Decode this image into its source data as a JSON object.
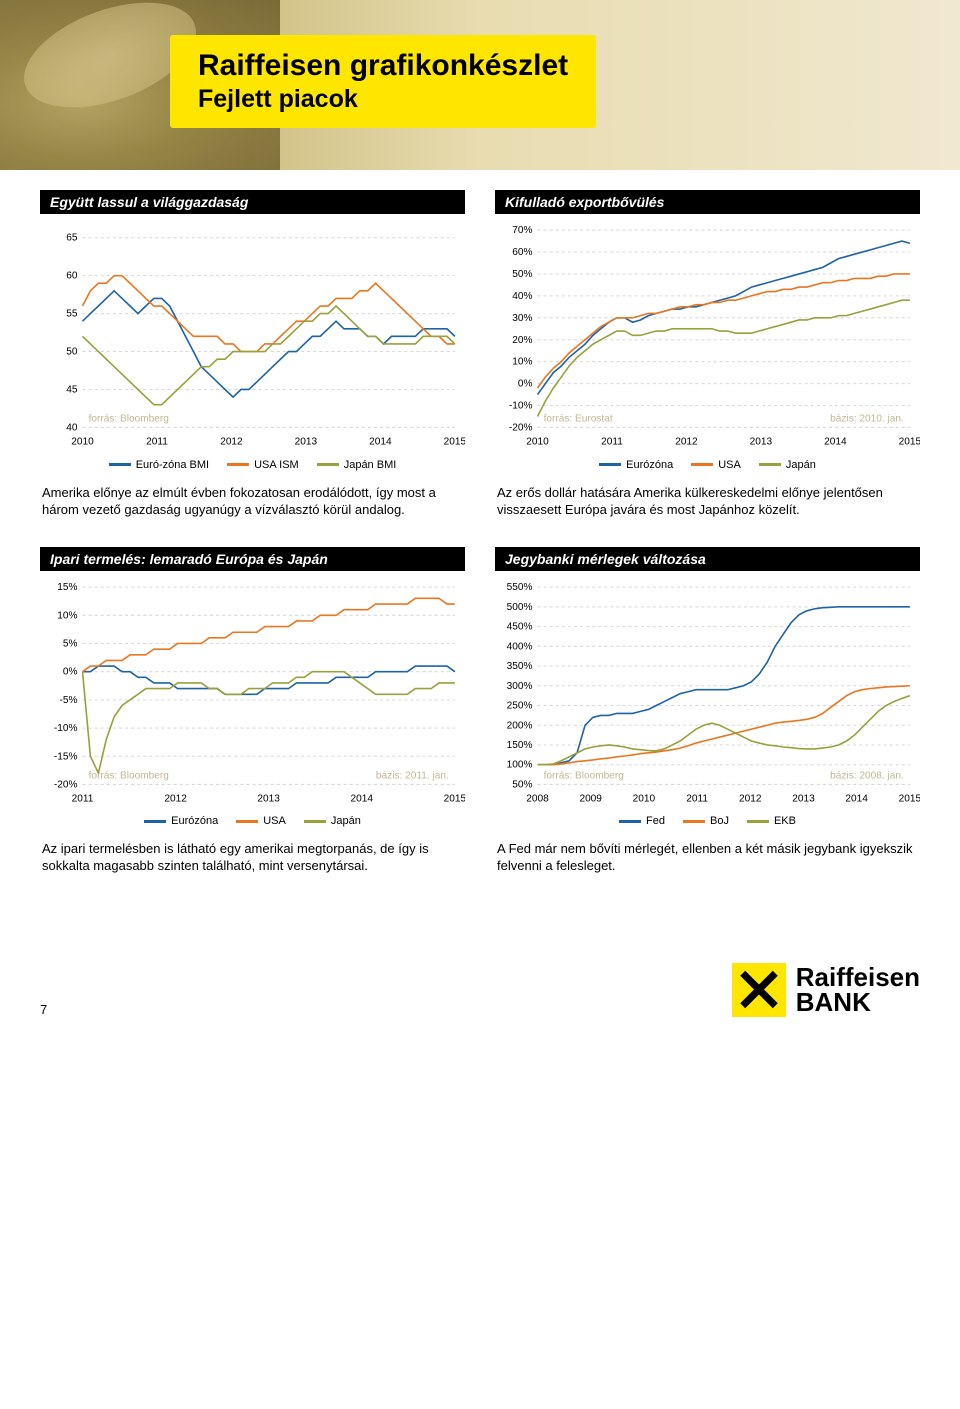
{
  "header": {
    "title": "Raiffeisen grafikonkészlet",
    "subtitle": "Fejlett piacok"
  },
  "colors": {
    "euro": "#1e64a5",
    "usa": "#e87722",
    "japan": "#9aa03c",
    "grid": "#d8d8d8",
    "annot": "#c0b890"
  },
  "chart_a": {
    "title": "Együtt lassul a világgazdaság",
    "type": "line",
    "source": "forrás: Bloomberg",
    "ylim": [
      40,
      66
    ],
    "yticks": [
      40,
      45,
      50,
      55,
      60,
      65
    ],
    "xticks": [
      "2010",
      "2011",
      "2012",
      "2013",
      "2014",
      "2015"
    ],
    "legend": [
      {
        "label": "Euró-zóna BMI",
        "color": "#1e64a5"
      },
      {
        "label": "USA ISM",
        "color": "#e87722"
      },
      {
        "label": "Japán BMI",
        "color": "#9aa03c"
      }
    ],
    "series": {
      "euro": [
        54,
        55,
        56,
        57,
        58,
        57,
        56,
        55,
        56,
        57,
        57,
        56,
        54,
        52,
        50,
        48,
        47,
        46,
        45,
        44,
        45,
        45,
        46,
        47,
        48,
        49,
        50,
        50,
        51,
        52,
        52,
        53,
        54,
        53,
        53,
        53,
        52,
        52,
        51,
        52,
        52,
        52,
        52,
        53,
        53,
        53,
        53,
        52
      ],
      "usa": [
        56,
        58,
        59,
        59,
        60,
        60,
        59,
        58,
        57,
        56,
        56,
        55,
        54,
        53,
        52,
        52,
        52,
        52,
        51,
        51,
        50,
        50,
        50,
        51,
        51,
        52,
        53,
        54,
        54,
        55,
        56,
        56,
        57,
        57,
        57,
        58,
        58,
        59,
        58,
        57,
        56,
        55,
        54,
        53,
        52,
        52,
        51,
        51
      ],
      "japan": [
        52,
        51,
        50,
        49,
        48,
        47,
        46,
        45,
        44,
        43,
        43,
        44,
        45,
        46,
        47,
        48,
        48,
        49,
        49,
        50,
        50,
        50,
        50,
        50,
        51,
        51,
        52,
        53,
        54,
        54,
        55,
        55,
        56,
        55,
        54,
        53,
        52,
        52,
        51,
        51,
        51,
        51,
        51,
        52,
        52,
        52,
        52,
        51
      ]
    },
    "caption": "Amerika előnye az elmúlt évben fokozatosan erodálódott, így most a három vezető gazdaság ugyanúgy a vízválasztó körül andalog."
  },
  "chart_b": {
    "title": "Kifulladó exportbővülés",
    "type": "line",
    "source": "forrás: Eurostat",
    "basis": "bázis: 2010. jan.",
    "ylim": [
      -20,
      70
    ],
    "yticks": [
      -20,
      -10,
      0,
      10,
      20,
      30,
      40,
      50,
      60,
      70
    ],
    "xticks": [
      "2010",
      "2011",
      "2012",
      "2013",
      "2014",
      "2015"
    ],
    "legend": [
      {
        "label": "Eurózóna",
        "color": "#1e64a5"
      },
      {
        "label": "USA",
        "color": "#e87722"
      },
      {
        "label": "Japán",
        "color": "#9aa03c"
      }
    ],
    "series": {
      "euro": [
        -5,
        0,
        5,
        8,
        12,
        15,
        18,
        22,
        25,
        28,
        30,
        30,
        28,
        29,
        31,
        32,
        33,
        34,
        34,
        35,
        35,
        36,
        37,
        38,
        39,
        40,
        42,
        44,
        45,
        46,
        47,
        48,
        49,
        50,
        51,
        52,
        53,
        55,
        57,
        58,
        59,
        60,
        61,
        62,
        63,
        64,
        65,
        64
      ],
      "usa": [
        -2,
        3,
        7,
        10,
        14,
        17,
        20,
        23,
        26,
        28,
        30,
        30,
        30,
        31,
        32,
        32,
        33,
        34,
        35,
        35,
        36,
        36,
        37,
        37,
        38,
        38,
        39,
        40,
        41,
        42,
        42,
        43,
        43,
        44,
        44,
        45,
        46,
        46,
        47,
        47,
        48,
        48,
        48,
        49,
        49,
        50,
        50,
        50
      ],
      "japan": [
        -15,
        -8,
        -2,
        3,
        8,
        12,
        15,
        18,
        20,
        22,
        24,
        24,
        22,
        22,
        23,
        24,
        24,
        25,
        25,
        25,
        25,
        25,
        25,
        24,
        24,
        23,
        23,
        23,
        24,
        25,
        26,
        27,
        28,
        29,
        29,
        30,
        30,
        30,
        31,
        31,
        32,
        33,
        34,
        35,
        36,
        37,
        38,
        38
      ]
    },
    "caption": "Az erős dollár hatására Amerika külkereskedelmi előnye jelentősen visszaesett Európa javára és most Japánhoz közelít."
  },
  "chart_c": {
    "title": "Ipari termelés: lemaradó Európa és Japán",
    "type": "line",
    "source": "forrás: Bloomberg",
    "basis": "bázis: 2011. jan.",
    "ylim": [
      -20,
      15
    ],
    "yticks": [
      -20,
      -15,
      -10,
      -5,
      0,
      5,
      10,
      15
    ],
    "xticks": [
      "2011",
      "2012",
      "2013",
      "2014",
      "2015"
    ],
    "legend": [
      {
        "label": "Eurózóna",
        "color": "#1e64a5"
      },
      {
        "label": "USA",
        "color": "#e87722"
      },
      {
        "label": "Japán",
        "color": "#9aa03c"
      }
    ],
    "series": {
      "euro": [
        0,
        0,
        1,
        1,
        1,
        0,
        0,
        -1,
        -1,
        -2,
        -2,
        -2,
        -3,
        -3,
        -3,
        -3,
        -3,
        -3,
        -4,
        -4,
        -4,
        -4,
        -4,
        -3,
        -3,
        -3,
        -3,
        -2,
        -2,
        -2,
        -2,
        -2,
        -1,
        -1,
        -1,
        -1,
        -1,
        0,
        0,
        0,
        0,
        0,
        1,
        1,
        1,
        1,
        1,
        0
      ],
      "usa": [
        0,
        1,
        1,
        2,
        2,
        2,
        3,
        3,
        3,
        4,
        4,
        4,
        5,
        5,
        5,
        5,
        6,
        6,
        6,
        7,
        7,
        7,
        7,
        8,
        8,
        8,
        8,
        9,
        9,
        9,
        10,
        10,
        10,
        11,
        11,
        11,
        11,
        12,
        12,
        12,
        12,
        12,
        13,
        13,
        13,
        13,
        12,
        12
      ],
      "japan": [
        0,
        -15,
        -18,
        -12,
        -8,
        -6,
        -5,
        -4,
        -3,
        -3,
        -3,
        -3,
        -2,
        -2,
        -2,
        -2,
        -3,
        -3,
        -4,
        -4,
        -4,
        -3,
        -3,
        -3,
        -2,
        -2,
        -2,
        -1,
        -1,
        0,
        0,
        0,
        0,
        0,
        -1,
        -2,
        -3,
        -4,
        -4,
        -4,
        -4,
        -4,
        -3,
        -3,
        -3,
        -2,
        -2,
        -2
      ]
    },
    "caption": "Az ipari termelésben is látható egy amerikai megtorpanás, de így is sokkalta magasabb szinten található, mint versenytársai."
  },
  "chart_d": {
    "title": "Jegybanki mérlegek változása",
    "type": "line",
    "source": "forrás: Bloomberg",
    "basis": "bázis: 2008. jan.",
    "ylim": [
      50,
      550
    ],
    "yticks": [
      50,
      100,
      150,
      200,
      250,
      300,
      350,
      400,
      450,
      500,
      550
    ],
    "xticks": [
      "2008",
      "2009",
      "2010",
      "2011",
      "2012",
      "2013",
      "2014",
      "2015"
    ],
    "legend": [
      {
        "label": "Fed",
        "color": "#1e64a5"
      },
      {
        "label": "BoJ",
        "color": "#e87722"
      },
      {
        "label": "EKB",
        "color": "#9aa03c"
      }
    ],
    "series": {
      "fed": [
        100,
        100,
        100,
        105,
        110,
        130,
        200,
        220,
        225,
        225,
        230,
        230,
        230,
        235,
        240,
        250,
        260,
        270,
        280,
        285,
        290,
        290,
        290,
        290,
        290,
        295,
        300,
        310,
        330,
        360,
        400,
        430,
        460,
        480,
        490,
        495,
        498,
        499,
        500,
        500,
        500,
        500,
        500,
        500,
        500,
        500,
        500,
        500
      ],
      "boj": [
        100,
        100,
        100,
        102,
        105,
        108,
        110,
        112,
        115,
        117,
        120,
        122,
        125,
        128,
        130,
        132,
        135,
        138,
        142,
        148,
        155,
        160,
        165,
        170,
        175,
        180,
        185,
        190,
        195,
        200,
        205,
        208,
        210,
        212,
        215,
        220,
        230,
        245,
        260,
        275,
        285,
        290,
        293,
        295,
        297,
        298,
        299,
        300
      ],
      "ekb": [
        100,
        100,
        102,
        110,
        120,
        130,
        140,
        145,
        148,
        150,
        148,
        145,
        140,
        138,
        136,
        135,
        140,
        150,
        160,
        175,
        190,
        200,
        205,
        200,
        190,
        180,
        170,
        160,
        155,
        150,
        148,
        145,
        143,
        141,
        140,
        140,
        142,
        145,
        150,
        160,
        175,
        195,
        215,
        235,
        250,
        260,
        268,
        275
      ]
    },
    "caption": "A Fed már nem bővíti mérlegét, ellenben a két másik jegybank igyekszik felvenni a felesleget."
  },
  "footer": {
    "page": "7",
    "bank": "Raiffeisen",
    "bank2": "BANK"
  }
}
